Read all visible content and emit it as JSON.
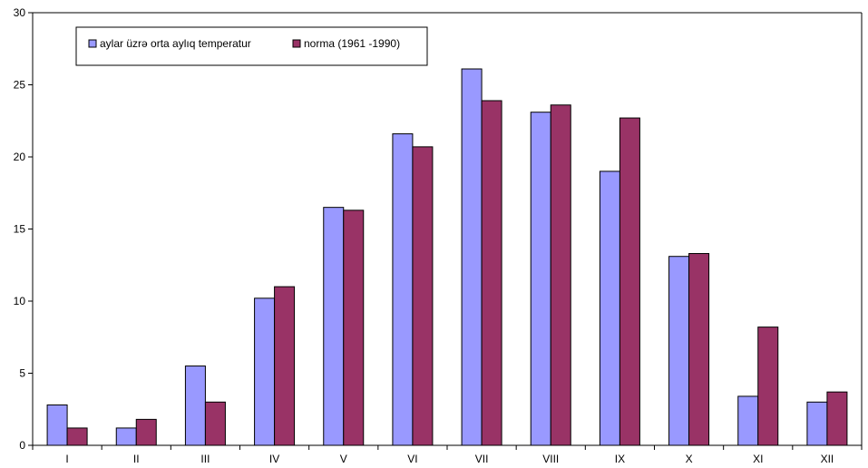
{
  "chart_data": {
    "type": "bar",
    "categories": [
      "I",
      "II",
      "III",
      "IV",
      "V",
      "VI",
      "VII",
      "VIII",
      "IX",
      "X",
      "XI",
      "XII"
    ],
    "series": [
      {
        "name": "aylar üzrə orta aylıq temperatur",
        "color": "#9999ff",
        "values": [
          2.8,
          1.2,
          5.5,
          10.2,
          16.5,
          21.6,
          26.1,
          23.1,
          19.0,
          13.1,
          3.4,
          3.0
        ]
      },
      {
        "name": "norma (1961 -1990)",
        "color": "#993366",
        "values": [
          1.2,
          1.8,
          3.0,
          11.0,
          16.3,
          20.7,
          23.9,
          23.6,
          22.7,
          13.3,
          8.2,
          3.7
        ]
      }
    ],
    "yticks": [
      "0",
      "5",
      "10",
      "15",
      "20",
      "25",
      "30"
    ],
    "ylim": [
      0,
      30
    ],
    "title": "",
    "xlabel": "",
    "ylabel": "",
    "grid": false,
    "legend_position": "top-left"
  }
}
